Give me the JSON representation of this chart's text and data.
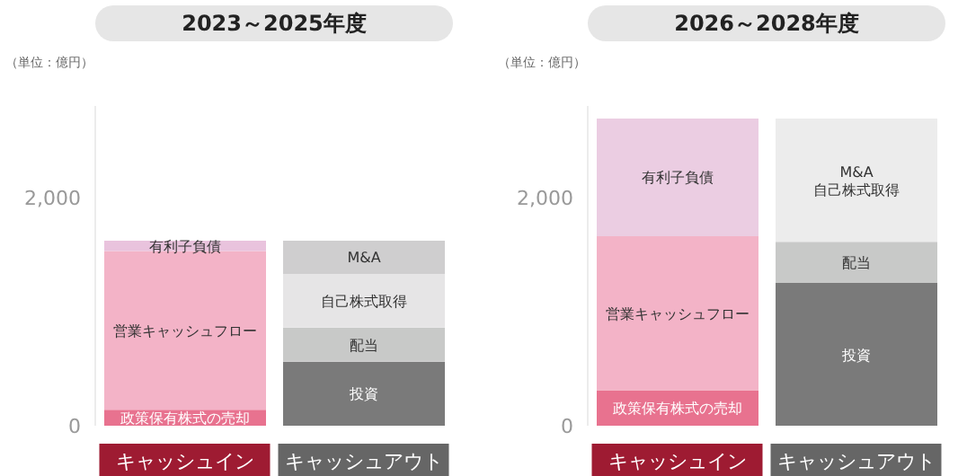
{
  "chart_data": [
    {
      "type": "bar",
      "stacked": true,
      "title": "2023～2025年度",
      "ylabel": "（単位：億円）",
      "categories": [
        "キャッシュイン",
        "キャッシュアウト"
      ],
      "ylim": [
        0,
        2800
      ],
      "yticks": [
        0,
        {
          "value": 2000,
          "label": "2,000"
        }
      ],
      "grid": false,
      "legend": false,
      "series": [
        {
          "name": "政策保有株式の売却",
          "color": "#e8728f",
          "values": [
            140,
            null
          ]
        },
        {
          "name": "営業キャッシュフロー",
          "color": "#f3b3c7",
          "values": [
            1390,
            null
          ]
        },
        {
          "name": "有利子負債",
          "color": "#e9c3dd",
          "values": [
            90,
            null
          ]
        },
        {
          "name": "投資",
          "color": "#7a7a7a",
          "values": [
            null,
            560
          ]
        },
        {
          "name": "配当",
          "color": "#c8c9c8",
          "values": [
            null,
            300
          ]
        },
        {
          "name": "自己株式取得",
          "color": "#e6e5e6",
          "values": [
            null,
            470
          ]
        },
        {
          "name": "M&A",
          "color": "#cfcecf",
          "values": [
            null,
            290
          ]
        }
      ]
    },
    {
      "type": "bar",
      "stacked": true,
      "title": "2026～2028年度",
      "ylabel": "（単位：億円）",
      "categories": [
        "キャッシュイン",
        "キャッシュアウト"
      ],
      "ylim": [
        0,
        2800
      ],
      "yticks": [
        0,
        {
          "value": 2000,
          "label": "2,000"
        }
      ],
      "grid": false,
      "legend": false,
      "series": [
        {
          "name": "政策保有株式の売却",
          "color": "#e8728f",
          "values": [
            310,
            null
          ]
        },
        {
          "name": "営業キャッシュフロー",
          "color": "#f3b3c7",
          "values": [
            1350,
            null
          ]
        },
        {
          "name": "有利子負債",
          "color": "#ebcde2",
          "values": [
            1030,
            null
          ]
        },
        {
          "name": "投資",
          "color": "#7a7a7a",
          "values": [
            null,
            1250
          ]
        },
        {
          "name": "配当",
          "color": "#c8c9c8",
          "values": [
            null,
            360
          ]
        },
        {
          "name": "M&A\n自己株式取得",
          "color": "#ececec",
          "values": [
            null,
            1080
          ]
        }
      ]
    }
  ]
}
